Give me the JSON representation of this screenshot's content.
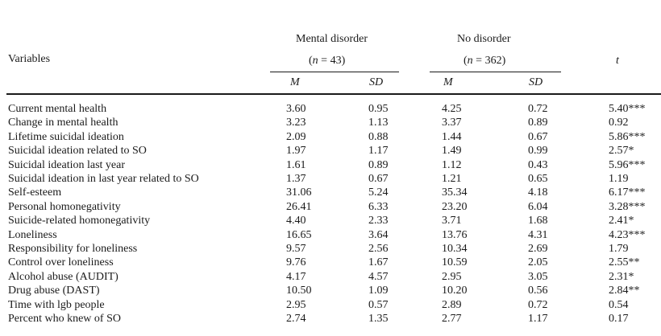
{
  "table": {
    "header": {
      "variables": "Variables",
      "group1": {
        "name": "Mental disorder",
        "n_label": "(n = 43)",
        "n_pre": "(",
        "n_var": "n",
        "n_post": " = 43)"
      },
      "group2": {
        "name": "No disorder",
        "n_label": "(n = 362)",
        "n_pre": "(",
        "n_var": "n",
        "n_post": " = 362)"
      },
      "t": "t",
      "m": "M",
      "sd": "SD"
    },
    "rows": [
      {
        "variable": "Current mental health",
        "m1": "3.60",
        "sd1": "0.95",
        "m2": "4.25",
        "sd2": "0.72",
        "t": "5.40***"
      },
      {
        "variable": "Change in mental health",
        "m1": "3.23",
        "sd1": "1.13",
        "m2": "3.37",
        "sd2": "0.89",
        "t": "0.92"
      },
      {
        "variable": "Lifetime suicidal ideation",
        "m1": "2.09",
        "sd1": "0.88",
        "m2": "1.44",
        "sd2": "0.67",
        "t": "5.86***"
      },
      {
        "variable": "Suicidal ideation related to SO",
        "m1": "1.97",
        "sd1": "1.17",
        "m2": "1.49",
        "sd2": "0.99",
        "t": "2.57*"
      },
      {
        "variable": "Suicidal ideation last year",
        "m1": "1.61",
        "sd1": "0.89",
        "m2": "1.12",
        "sd2": "0.43",
        "t": "5.96***"
      },
      {
        "variable": "Suicidal ideation in last year related to SO",
        "m1": "1.37",
        "sd1": "0.67",
        "m2": "1.21",
        "sd2": "0.65",
        "t": "1.19"
      },
      {
        "variable": "Self-esteem",
        "m1": "31.06",
        "sd1": "5.24",
        "m2": "35.34",
        "sd2": "4.18",
        "t": "6.17***"
      },
      {
        "variable": "Personal homonegativity",
        "m1": "26.41",
        "sd1": "6.33",
        "m2": "23.20",
        "sd2": "6.04",
        "t": "3.28***"
      },
      {
        "variable": "Suicide-related homonegativity",
        "m1": "4.40",
        "sd1": "2.33",
        "m2": "3.71",
        "sd2": "1.68",
        "t": "2.41*"
      },
      {
        "variable": "Loneliness",
        "m1": "16.65",
        "sd1": "3.64",
        "m2": "13.76",
        "sd2": "4.31",
        "t": "4.23***"
      },
      {
        "variable": "Responsibility for loneliness",
        "m1": "9.57",
        "sd1": "2.56",
        "m2": "10.34",
        "sd2": "2.69",
        "t": "1.79"
      },
      {
        "variable": "Control over loneliness",
        "m1": "9.76",
        "sd1": "1.67",
        "m2": "10.59",
        "sd2": "2.05",
        "t": "2.55**"
      },
      {
        "variable": "Alcohol abuse (AUDIT)",
        "m1": "4.17",
        "sd1": "4.57",
        "m2": "2.95",
        "sd2": "3.05",
        "t": "2.31*"
      },
      {
        "variable": "Drug abuse (DAST)",
        "m1": "10.50",
        "sd1": "1.09",
        "m2": "10.20",
        "sd2": "0.56",
        "t": "2.84**"
      },
      {
        "variable": "Time with lgb people",
        "m1": "2.95",
        "sd1": "0.57",
        "m2": "2.89",
        "sd2": "0.72",
        "t": "0.54"
      },
      {
        "variable": "Percent who knew of SO",
        "m1": "2.74",
        "sd1": "1.35",
        "m2": "2.77",
        "sd2": "1.17",
        "t": "0.17"
      }
    ]
  }
}
